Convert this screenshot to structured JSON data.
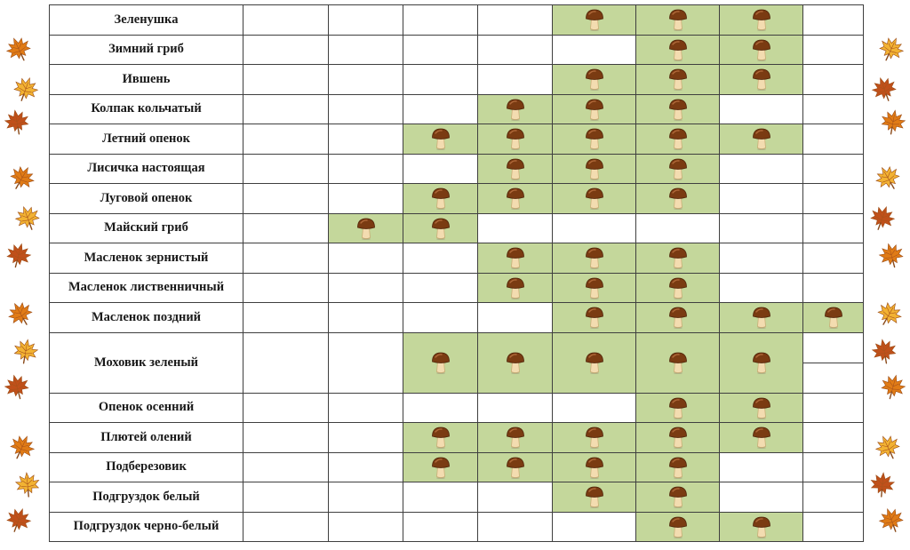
{
  "decoration": {
    "leaf_icon": "maple-leaf-icon",
    "leaf_colors": [
      "#e07b16",
      "#f2b233",
      "#c0501a"
    ]
  },
  "mushroom_icon": "mushroom-icon",
  "colors": {
    "active_cell": "#c4d79b",
    "grid_line": "#3f3f3f"
  },
  "table": {
    "period_columns": 8,
    "rows": [
      {
        "name": "Зеленушка",
        "months": [
          0,
          0,
          0,
          0,
          1,
          1,
          1,
          0
        ]
      },
      {
        "name": "Зимний гриб",
        "months": [
          0,
          0,
          0,
          0,
          0,
          1,
          1,
          0
        ]
      },
      {
        "name": "Ившень",
        "months": [
          0,
          0,
          0,
          0,
          1,
          1,
          1,
          0
        ]
      },
      {
        "name": "Колпак кольчатый",
        "months": [
          0,
          0,
          0,
          1,
          1,
          1,
          0,
          0
        ]
      },
      {
        "name": "Летний опенок",
        "months": [
          0,
          0,
          1,
          1,
          1,
          1,
          1,
          0
        ]
      },
      {
        "name": "Лисичка настоящая",
        "months": [
          0,
          0,
          0,
          1,
          1,
          1,
          0,
          0
        ]
      },
      {
        "name": "Луговой опенок",
        "months": [
          0,
          0,
          1,
          1,
          1,
          1,
          0,
          0
        ]
      },
      {
        "name": "Майский гриб",
        "months": [
          0,
          1,
          1,
          0,
          0,
          0,
          0,
          0
        ]
      },
      {
        "name": "Масленок зернистый",
        "months": [
          0,
          0,
          0,
          1,
          1,
          1,
          0,
          0
        ]
      },
      {
        "name": "Масленок лиственничный",
        "months": [
          0,
          0,
          0,
          1,
          1,
          1,
          0,
          0
        ]
      },
      {
        "name": "Масленок поздний",
        "months": [
          0,
          0,
          0,
          0,
          1,
          1,
          1,
          1
        ]
      },
      {
        "name": "Моховик зеленый",
        "months": [
          0,
          0,
          1,
          1,
          1,
          1,
          1,
          0
        ],
        "tall": true
      },
      {
        "name": "Опенок осенний",
        "months": [
          0,
          0,
          0,
          0,
          0,
          1,
          1,
          0
        ]
      },
      {
        "name": "Плютей олений",
        "months": [
          0,
          0,
          1,
          1,
          1,
          1,
          1,
          0
        ]
      },
      {
        "name": "Подберезовик",
        "months": [
          0,
          0,
          1,
          1,
          1,
          1,
          0,
          0
        ]
      },
      {
        "name": "Подгруздок белый",
        "months": [
          0,
          0,
          0,
          0,
          1,
          1,
          0,
          0
        ]
      },
      {
        "name": "Подгруздок черно-белый",
        "months": [
          0,
          0,
          0,
          0,
          0,
          1,
          1,
          0
        ]
      }
    ]
  }
}
